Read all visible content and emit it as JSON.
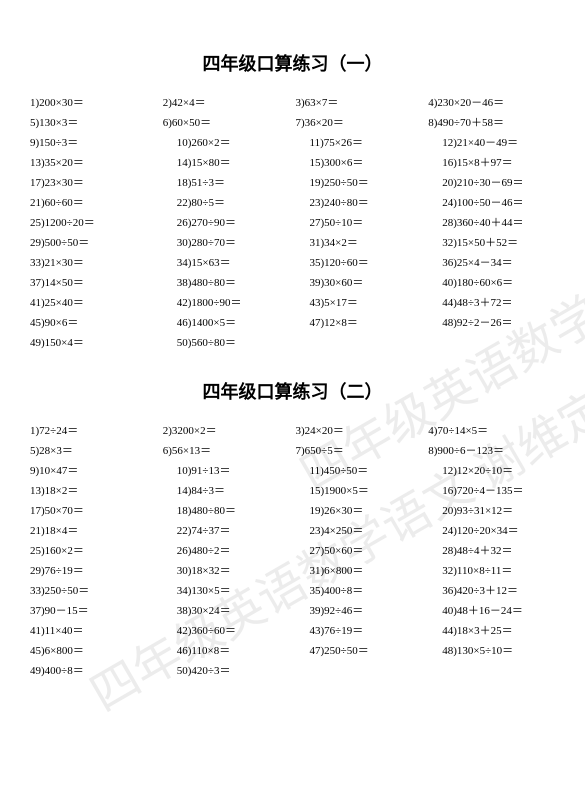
{
  "sections": [
    {
      "title": "四年级口算练习（一）",
      "rows": [
        [
          "1)200×30＝",
          "2)42×4＝",
          "3)63×7＝",
          "4)230×20－46＝"
        ],
        [
          "5)130×3＝",
          "6)60×50＝",
          "7)36×20＝",
          "8)490÷70＋58＝"
        ],
        [
          "9)150÷3＝",
          "10)260×2＝",
          "11)75×26＝",
          "12)21×40－49＝"
        ],
        [
          "13)35×20＝",
          "14)15×80＝",
          "15)300×6＝",
          "16)15×8＋97＝"
        ],
        [
          "17)23×30＝",
          "18)51÷3＝",
          "19)250÷50＝",
          "20)210÷30－69＝"
        ],
        [
          "21)60÷60＝",
          "22)80÷5＝",
          "23)240÷80＝",
          "24)100÷50－46＝"
        ],
        [
          "25)1200÷20＝",
          "26)270÷90＝",
          "27)50÷10＝",
          "28)360÷40＋44＝"
        ],
        [
          "29)500÷50＝",
          "30)280÷70＝",
          "31)34×2＝",
          "32)15×50＋52＝"
        ],
        [
          "33)21×30＝",
          "34)15×63＝",
          "35)120÷60＝",
          "36)25×4－34＝"
        ],
        [
          "37)14×50＝",
          "38)480÷80＝",
          "39)30×60＝",
          "40)180÷60×6＝"
        ],
        [
          "41)25×40＝",
          "42)1800÷90＝",
          "43)5×17＝",
          "44)48÷3＋72＝"
        ],
        [
          "45)90×6＝",
          "46)1400×5＝",
          "47)12×8＝",
          "48)92÷2－26＝"
        ],
        [
          "49)150×4＝",
          "50)560÷80＝",
          "",
          ""
        ]
      ]
    },
    {
      "title": "四年级口算练习（二）",
      "rows": [
        [
          "1)72÷24＝",
          "2)3200×2＝",
          "3)24×20＝",
          "4)70÷14×5＝"
        ],
        [
          "5)28×3＝",
          "6)56×13＝",
          "7)650÷5＝",
          "8)900÷6－123＝"
        ],
        [
          "9)10×47＝",
          "10)91÷13＝",
          "11)450÷50＝",
          "12)12×20÷10＝"
        ],
        [
          "13)18×2＝",
          "14)84÷3＝",
          "15)1900×5＝",
          "16)720÷4－135＝"
        ],
        [
          "17)50×70＝",
          "18)480÷80＝",
          "19)26×30＝",
          "20)93÷31×12＝"
        ],
        [
          "21)18×4＝",
          "22)74÷37＝",
          "23)4×250＝",
          "24)120÷20×34＝"
        ],
        [
          "25)160×2＝",
          "26)480÷2＝",
          "27)50×60＝",
          "28)48÷4＋32＝"
        ],
        [
          "29)76÷19＝",
          "30)18×32＝",
          "31)6×800＝",
          "32)110×8÷11＝"
        ],
        [
          "33)250÷50＝",
          "34)130×5＝",
          "35)400÷8＝",
          "36)420÷3＋12＝"
        ],
        [
          "37)90－15＝",
          "38)30×24＝",
          "39)92÷46＝",
          "40)48＋16－24＝"
        ],
        [
          "41)11×40＝",
          "42)360÷60＝",
          "43)76÷19＝",
          "44)18×3＋25＝"
        ],
        [
          "45)6×800＝",
          "46)110×8＝",
          "47)250÷50＝",
          "48)130×5÷10＝"
        ],
        [
          "49)400÷8＝",
          "50)420÷3＝",
          "",
          ""
        ]
      ]
    }
  ],
  "watermark": "四年级英语数学语文 谢维定制"
}
